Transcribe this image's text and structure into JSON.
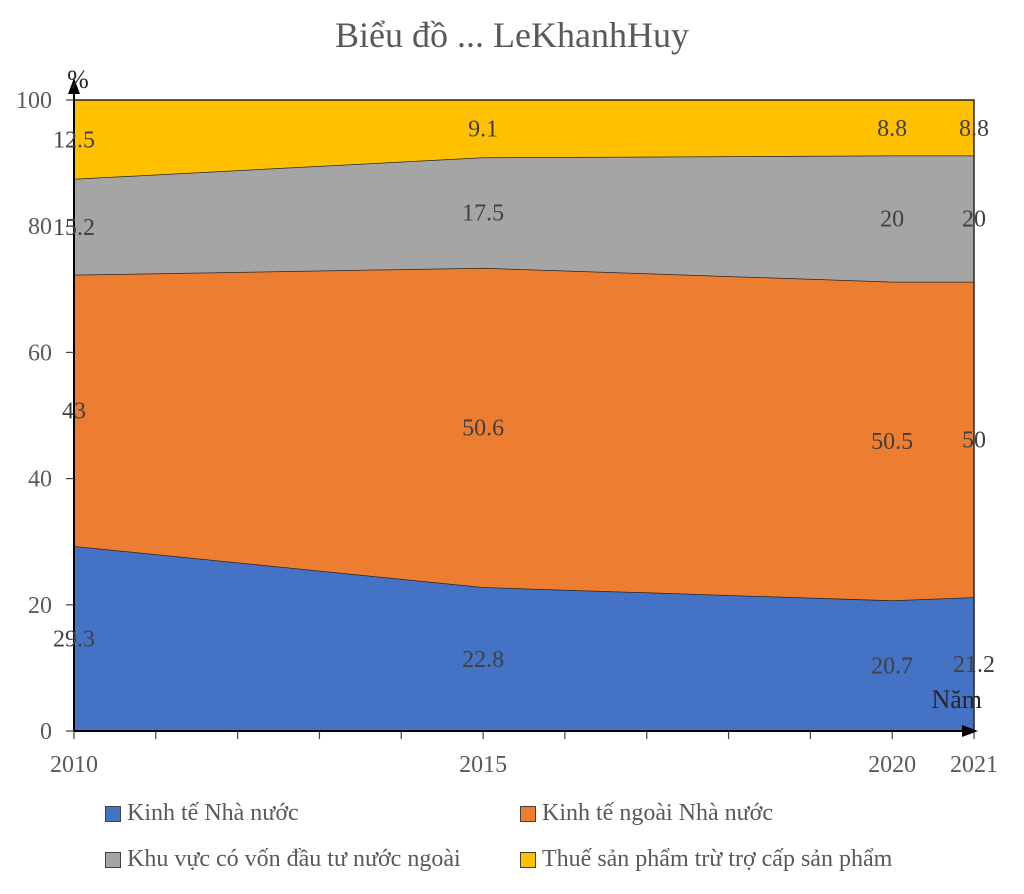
{
  "chart_data": {
    "type": "area",
    "stacked": true,
    "title": "Biểu đồ ... LeKhanhHuy",
    "xlabel": "Năm",
    "ylabel": "%",
    "x": [
      2010,
      2015,
      2020,
      2021
    ],
    "x_tick_labels": [
      "2010",
      "2015",
      "2020",
      "2021"
    ],
    "xlim": [
      2010,
      2021
    ],
    "ylim": [
      0,
      100
    ],
    "y_ticks": [
      0,
      20,
      40,
      60,
      80,
      100
    ],
    "y_tick_labels": [
      "0",
      "20",
      "40",
      "60",
      "80",
      "100"
    ],
    "grid": false,
    "legend_position": "bottom",
    "series": [
      {
        "name": "Kinh tế Nhà nước",
        "values": [
          29.3,
          22.8,
          20.7,
          21.2
        ],
        "labels": [
          "29.3",
          "22.8",
          "20.7",
          "21.2"
        ],
        "color": "#4472C4"
      },
      {
        "name": "Kinh tế ngoài Nhà nước",
        "values": [
          43,
          50.6,
          50.5,
          50
        ],
        "labels": [
          "43",
          "50.6",
          "50.5",
          "50"
        ],
        "color": "#ED7D31"
      },
      {
        "name": "Khu vực có vốn đầu tư nước ngoài",
        "values": [
          15.2,
          17.5,
          20,
          20
        ],
        "labels": [
          "15.2",
          "17.5",
          "20",
          "20"
        ],
        "color": "#A5A5A5"
      },
      {
        "name": "Thuế sản phẩm trừ trợ cấp sản phẩm",
        "values": [
          12.5,
          9.1,
          8.8,
          8.8
        ],
        "labels": [
          "12.5",
          "9.1",
          "8.8",
          "8.8"
        ],
        "color": "#FFC000"
      }
    ]
  }
}
